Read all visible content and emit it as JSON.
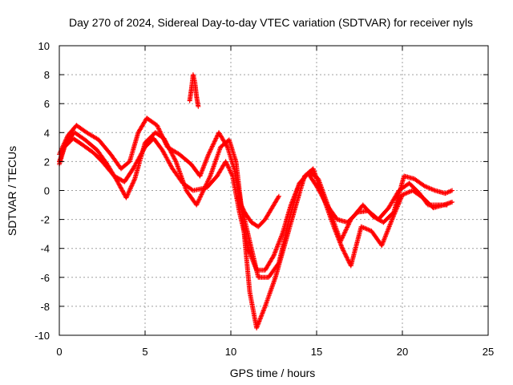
{
  "chart_data": {
    "type": "scatter",
    "title": "Day 270 of 2024, Sidereal Day-to-day VTEC variation (SDTVAR) for receiver nyls",
    "xlabel": "GPS time / hours",
    "ylabel": "SDTVAR / TECUs",
    "xlim": [
      0,
      25
    ],
    "ylim": [
      -10,
      10
    ],
    "xticks": [
      "0",
      "5",
      "10",
      "15",
      "20",
      "25"
    ],
    "yticks": [
      "10",
      "8",
      "6",
      "4",
      "2",
      "0",
      "-2",
      "-4",
      "-6",
      "-8",
      "-10"
    ],
    "grid": true,
    "marker": "+",
    "series": [
      {
        "name": "trace-1",
        "color": "#ff0000",
        "x": [
          0.0,
          0.3,
          0.8,
          1.3,
          2.0,
          2.5,
          3.2,
          3.8,
          4.3,
          5.0,
          5.5,
          6.0,
          6.6,
          7.2,
          7.8,
          8.6,
          9.2,
          9.7,
          10.1,
          10.5,
          11.0,
          11.5,
          12.0,
          12.5,
          13.0,
          13.5,
          14.0,
          14.5,
          15.0,
          15.6,
          16.2,
          16.8,
          17.4,
          18.0,
          18.6,
          19.2,
          19.8,
          20.4,
          21.0,
          21.5,
          22.0,
          22.6
        ],
        "y": [
          2.0,
          3.0,
          3.6,
          3.2,
          2.6,
          2.0,
          1.0,
          0.6,
          1.5,
          3.0,
          3.6,
          2.8,
          1.5,
          0.5,
          0.0,
          0.2,
          1.0,
          2.0,
          1.0,
          -1.5,
          -4.0,
          -5.5,
          -5.5,
          -4.5,
          -3.0,
          -1.0,
          0.5,
          1.2,
          0.3,
          -1.0,
          -2.0,
          -2.2,
          -1.5,
          -1.4,
          -2.0,
          -1.2,
          0.0,
          0.5,
          -0.2,
          -1.0,
          -1.0,
          -1.0
        ]
      },
      {
        "name": "trace-2",
        "color": "#ff0000",
        "x": [
          0.0,
          0.4,
          0.9,
          1.5,
          2.2,
          2.8,
          3.4,
          3.9,
          4.4,
          5.0,
          5.6,
          6.1,
          6.8,
          7.4,
          8.0,
          8.8,
          9.4,
          9.9,
          10.3,
          10.7,
          11.1,
          11.5,
          12.0,
          12.6,
          13.2,
          13.8,
          14.3,
          14.8,
          15.4,
          16.0,
          16.5,
          17.0,
          17.6,
          18.2,
          18.8,
          19.4,
          20.0,
          20.6,
          21.2,
          21.8,
          22.4,
          22.9
        ],
        "y": [
          1.8,
          3.4,
          4.0,
          3.5,
          2.8,
          1.8,
          0.6,
          -0.5,
          0.8,
          3.3,
          4.0,
          3.6,
          2.0,
          0.0,
          -1.0,
          1.0,
          3.0,
          3.5,
          2.0,
          -2.0,
          -7.0,
          -9.5,
          -8.0,
          -6.0,
          -3.5,
          -1.0,
          1.0,
          1.5,
          -0.5,
          -2.5,
          -4.0,
          -5.2,
          -2.5,
          -2.8,
          -3.8,
          -2.0,
          -0.3,
          0.0,
          -0.5,
          -1.2,
          -1.0,
          -0.8
        ]
      },
      {
        "name": "trace-3",
        "color": "#ff0000",
        "x": [
          0.0,
          0.5,
          1.0,
          1.6,
          2.3,
          3.0,
          3.6,
          4.1,
          4.6,
          5.1,
          5.7,
          6.3,
          7.0,
          7.7,
          8.2,
          8.7,
          9.3,
          9.8,
          10.2,
          10.6,
          11.0,
          11.6,
          12.2,
          12.8,
          13.4,
          14.0,
          14.6,
          15.1,
          15.8,
          16.4,
          17.0,
          17.7,
          18.3,
          18.9,
          19.5,
          20.1,
          20.7,
          21.3,
          21.9,
          22.5,
          22.9
        ],
        "y": [
          2.5,
          3.8,
          4.5,
          4.0,
          3.5,
          2.5,
          1.5,
          2.0,
          4.0,
          5.0,
          4.5,
          3.0,
          2.5,
          1.8,
          1.0,
          2.5,
          4.0,
          3.0,
          1.5,
          -1.0,
          -3.0,
          -6.0,
          -6.0,
          -5.0,
          -2.0,
          0.5,
          1.3,
          0.8,
          -1.5,
          -3.5,
          -2.0,
          -1.0,
          -1.8,
          -2.2,
          -1.5,
          1.0,
          0.8,
          0.3,
          0.0,
          -0.2,
          0.0
        ]
      },
      {
        "name": "trace-4",
        "color": "#ff0000",
        "x": [
          7.6,
          7.7,
          7.8,
          7.9,
          8.0,
          8.1
        ],
        "y": [
          6.2,
          7.0,
          8.0,
          7.5,
          6.5,
          5.8
        ]
      },
      {
        "name": "trace-5",
        "color": "#ff0000",
        "x": [
          10.4,
          10.8,
          11.2,
          11.6,
          12.0,
          12.4,
          12.8
        ],
        "y": [
          -0.5,
          -1.5,
          -2.2,
          -2.5,
          -2.0,
          -1.2,
          -0.4
        ]
      }
    ]
  }
}
